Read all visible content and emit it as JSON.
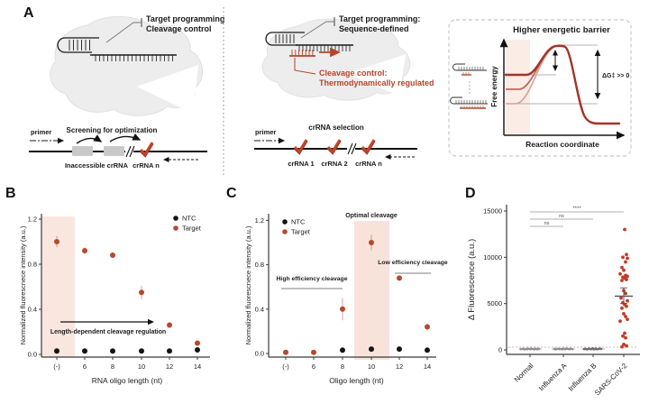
{
  "panel_labels": {
    "a": "A",
    "b": "B",
    "c": "C",
    "d": "D"
  },
  "figure": {
    "panel_a": {
      "left": {
        "title_line1": "Target programming",
        "title_line2": "Cleavage control",
        "screening_label": "Screening for optimization",
        "primer_label": "primer",
        "box_label": "Inaccessible crRNA",
        "crrna_label": "crRNA n"
      },
      "middle": {
        "title_line1": "Target programming:",
        "title_line2": "Sequence-defined",
        "red_line1": "Cleavage control:",
        "red_line2": "Thermodynamically regulated",
        "selection_label": "crRNA selection",
        "primer_label": "primer",
        "crrna1": "crRNA 1",
        "crrna2": "crRNA 2",
        "crrnan": "crRNA n"
      },
      "energy": {
        "title": "Higher energetic barrier",
        "ylabel": "Free energy",
        "xlabel": "Reaction coordinate",
        "annotation": "ΔG‡ >> 0"
      }
    }
  },
  "chart_data": [
    {
      "id": "chart-b",
      "panel": "B",
      "type": "scatter",
      "title": "",
      "xlabel": "RNA oligo length (nt)",
      "ylabel": "Normalized fluorescnece intensity (a.u.)",
      "categories": [
        "(-)",
        "6",
        "8",
        "10",
        "12",
        "14"
      ],
      "yticks": [
        "0.0",
        "0.4",
        "0.8",
        "1.2"
      ],
      "ylim": [
        0,
        1.2
      ],
      "grid": false,
      "legend_position": "top-right",
      "series": [
        {
          "name": "NTC",
          "color": "#141414",
          "values": [
            0.03,
            0.03,
            0.03,
            0.03,
            0.03,
            0.04
          ],
          "errors": [
            0,
            0,
            0,
            0,
            0,
            0
          ]
        },
        {
          "name": "Target",
          "color": "#b5492b",
          "values": [
            1.0,
            0.92,
            0.88,
            0.55,
            0.26,
            0.1
          ],
          "errors": [
            0.05,
            0.03,
            0.02,
            0.06,
            0.02,
            0.02
          ]
        }
      ],
      "band": {
        "over_category": "(-)",
        "color": "#f9e7df"
      },
      "annotation": {
        "text": "Length-dependent cleavage regulation",
        "has_arrow": true
      }
    },
    {
      "id": "chart-c",
      "panel": "C",
      "type": "scatter",
      "title": "",
      "xlabel": "Oligo length (nt)",
      "ylabel": "Normalized fluorescnece intensity (a.u.)",
      "categories": [
        "(-)",
        "6",
        "8",
        "10",
        "12",
        "14"
      ],
      "yticks": [
        "0.0",
        "0.4",
        "0.8",
        "1.2"
      ],
      "ylim": [
        0,
        1.2
      ],
      "grid": false,
      "legend_position": "top-left",
      "series": [
        {
          "name": "NTC",
          "color": "#141414",
          "values": [
            null,
            null,
            0.03,
            0.04,
            0.04,
            0.03
          ],
          "errors": [
            0,
            0,
            0,
            0,
            0,
            0
          ]
        },
        {
          "name": "Target",
          "color": "#b5492b",
          "values": [
            0.01,
            0.01,
            0.4,
            1.0,
            0.68,
            0.24
          ],
          "errors": [
            0.01,
            0.01,
            0.1,
            0.07,
            0.02,
            0.03
          ]
        }
      ],
      "band": {
        "over_category": "10",
        "color": "#f7e3da"
      },
      "labels": {
        "optimal": "Optimal cleavage",
        "high": "High efficiency cleavage",
        "low": "Low efficiency cleavage"
      }
    },
    {
      "id": "chart-d",
      "panel": "D",
      "type": "strip",
      "ylabel": "Δ Fluorescence (a.u.)",
      "yticks": [
        "0",
        "5000",
        "10000",
        "15000"
      ],
      "ylim": [
        -700,
        15000
      ],
      "categories": [
        "Normal",
        "Influenza A",
        "Influenza B",
        "SARS-CoV-2"
      ],
      "significance": [
        {
          "a": 0,
          "b": 1,
          "label": "ns"
        },
        {
          "a": 0,
          "b": 2,
          "label": "ns"
        },
        {
          "a": 0,
          "b": 3,
          "label": "****"
        }
      ],
      "groups": [
        {
          "name": "Normal",
          "color": "#8f8f8f",
          "dot_r": 1.3,
          "points": [
            [
              -10,
              80
            ],
            [
              -8,
              120
            ],
            [
              -6,
              60
            ],
            [
              -4,
              100
            ],
            [
              -2,
              140
            ],
            [
              0,
              70
            ],
            [
              2,
              110
            ],
            [
              4,
              90
            ],
            [
              6,
              130
            ],
            [
              8,
              75
            ],
            [
              10,
              105
            ],
            [
              -7,
              95
            ],
            [
              -3,
              85
            ],
            [
              1,
              125
            ],
            [
              5,
              65
            ],
            [
              9,
              115
            ]
          ]
        },
        {
          "name": "Influenza A",
          "color": "#8f8f8f",
          "dot_r": 1.3,
          "points": [
            [
              -10,
              90
            ],
            [
              -8,
              60
            ],
            [
              -6,
              120
            ],
            [
              -4,
              80
            ],
            [
              -2,
              105
            ],
            [
              0,
              135
            ],
            [
              2,
              70
            ],
            [
              4,
              115
            ],
            [
              6,
              95
            ],
            [
              8,
              125
            ],
            [
              10,
              85
            ],
            [
              -5,
              100
            ],
            [
              -1,
              65
            ],
            [
              3,
              140
            ],
            [
              7,
              75
            ],
            [
              -9,
              110
            ]
          ]
        },
        {
          "name": "Influenza B",
          "color": "#6f6f6f",
          "dot_r": 1.3,
          "points": [
            [
              -9,
              100
            ],
            [
              -7,
              70
            ],
            [
              -5,
              130
            ],
            [
              -3,
              90
            ],
            [
              -1,
              115
            ],
            [
              1,
              60
            ],
            [
              3,
              140
            ],
            [
              5,
              85
            ],
            [
              7,
              120
            ],
            [
              9,
              95
            ],
            [
              -8,
              105
            ],
            [
              -6,
              65
            ],
            [
              -4,
              125
            ],
            [
              -2,
              80
            ],
            [
              0,
              150
            ],
            [
              2,
              100
            ],
            [
              4,
              75
            ],
            [
              6,
              110
            ],
            [
              8,
              135
            ],
            [
              -10,
              90
            ]
          ]
        },
        {
          "name": "SARS-CoV-2",
          "color": "#c23b27",
          "dot_r": 1.9,
          "mean": 5800,
          "err_low": 5000,
          "err_high": 6700,
          "points": [
            [
              1,
              13000
            ],
            [
              3,
              10300
            ],
            [
              -1,
              10000
            ],
            [
              4,
              9900
            ],
            [
              2,
              9500
            ],
            [
              -2,
              8900
            ],
            [
              0,
              8600
            ],
            [
              -4,
              8200
            ],
            [
              2,
              8050
            ],
            [
              4,
              7950
            ],
            [
              -1,
              7850
            ],
            [
              1,
              7750
            ],
            [
              3,
              7600
            ],
            [
              -2,
              7500
            ],
            [
              0,
              6400
            ],
            [
              2,
              6100
            ],
            [
              -3,
              5600
            ],
            [
              4,
              5300
            ],
            [
              -1,
              5100
            ],
            [
              1,
              4900
            ],
            [
              3,
              4700
            ],
            [
              -2,
              4500
            ],
            [
              0,
              3900
            ],
            [
              2,
              3600
            ],
            [
              4,
              3300
            ],
            [
              -4,
              3100
            ],
            [
              1,
              1800
            ],
            [
              -1,
              1500
            ],
            [
              2,
              1300
            ],
            [
              0,
              600
            ],
            [
              3,
              430
            ],
            [
              -2,
              330
            ]
          ]
        }
      ],
      "threshold_line": 200
    }
  ]
}
